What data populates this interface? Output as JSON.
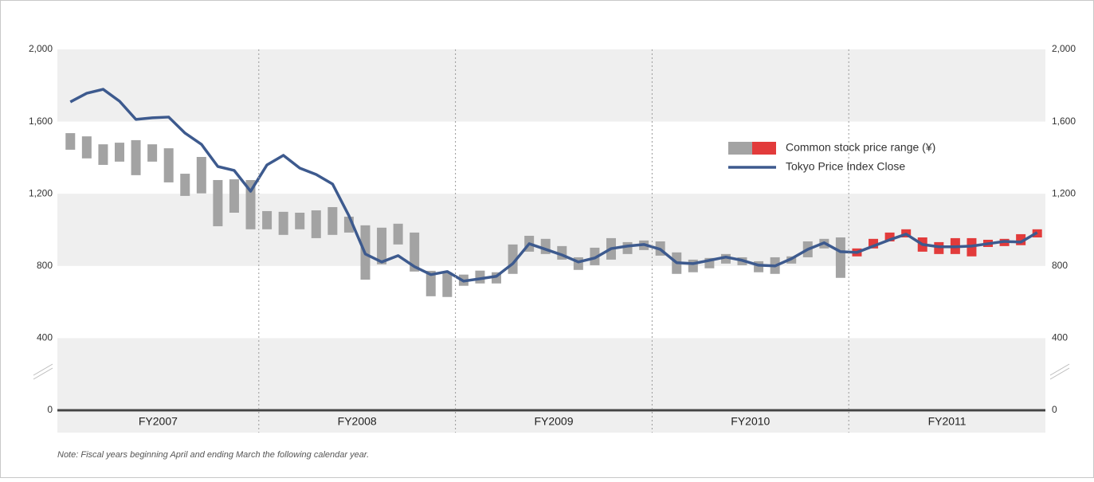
{
  "chart_data": {
    "type": "range-line",
    "note": "Note: Fiscal years beginning April and ending March the following calendar year.",
    "fiscal_years": [
      "FY2007",
      "FY2008",
      "FY2009",
      "FY2010",
      "FY2011"
    ],
    "categories": [
      null,
      null,
      null,
      null,
      null,
      null,
      null,
      null,
      null,
      null,
      null,
      null,
      null,
      null,
      null,
      null,
      null,
      null,
      null,
      null,
      null,
      null,
      null,
      null,
      null,
      null,
      null,
      null,
      null,
      null,
      null,
      null,
      null,
      null,
      null,
      null,
      null,
      null,
      null,
      null,
      null,
      null,
      null,
      null,
      null,
      null,
      null,
      null,
      null,
      null,
      null,
      null,
      null,
      null,
      null,
      null,
      null,
      null,
      null,
      null
    ],
    "ylim": [
      0,
      2000
    ],
    "yticks": [
      0,
      400,
      800,
      {
        "value": 1200,
        "label": "1,200"
      },
      {
        "value": 1600,
        "label": "1,600"
      },
      {
        "value": 2000,
        "label": "2,000"
      }
    ],
    "y2lim": [
      0,
      2000
    ],
    "y2ticks": [
      0,
      400,
      800,
      {
        "value": 1200,
        "label": "1,200"
      },
      {
        "value": 1600,
        "label": "1,600"
      },
      {
        "value": 2000,
        "label": "2,000"
      }
    ],
    "grid_bands": "#efefef",
    "series": [
      {
        "name": "Common stock price range (¥)",
        "type": "range",
        "year_colors": [
          "#a3a3a3",
          "#a3a3a3",
          "#a3a3a3",
          "#a3a3a3",
          "#e23b3b"
        ],
        "high": [
          1536,
          1518,
          1474,
          1483,
          1497,
          1474,
          1452,
          1311,
          1404,
          1276,
          1280,
          1276,
          1104,
          1100,
          1095,
          1108,
          1126,
          1073,
          1025,
          1012,
          1034,
          985,
          773,
          765,
          752,
          774,
          765,
          919,
          967,
          950,
          910,
          848,
          901,
          954,
          932,
          941,
          936,
          875,
          835,
          844,
          866,
          848,
          826,
          848,
          853,
          936,
          950,
          958,
          897,
          950,
          985,
          1003,
          958,
          932,
          954,
          954,
          945,
          950,
          976,
          1003
        ],
        "low": [
          1444,
          1396,
          1360,
          1378,
          1303,
          1378,
          1263,
          1188,
          1202,
          1020,
          1095,
          1003,
          1003,
          972,
          1003,
          954,
          972,
          985,
          724,
          809,
          919,
          769,
          632,
          628,
          690,
          703,
          703,
          756,
          879,
          866,
          835,
          778,
          804,
          835,
          866,
          888,
          857,
          756,
          765,
          787,
          813,
          804,
          765,
          756,
          813,
          848,
          897,
          734,
          853,
          897,
          936,
          958,
          879,
          866,
          866,
          853,
          905,
          910,
          915,
          958
        ]
      },
      {
        "name": "Tokyo Price Index Close",
        "type": "line",
        "color": "#3d5a8e",
        "values": [
          1709,
          1757,
          1779,
          1713,
          1612,
          1621,
          1625,
          1536,
          1474,
          1351,
          1329,
          1214,
          1360,
          1413,
          1342,
          1307,
          1254,
          1078,
          866,
          822,
          857,
          796,
          752,
          769,
          716,
          729,
          743,
          813,
          923,
          892,
          861,
          822,
          844,
          896,
          910,
          919,
          892,
          818,
          813,
          831,
          849,
          831,
          804,
          800,
          840,
          892,
          928,
          879,
          875,
          910,
          945,
          976,
          919,
          906,
          906,
          910,
          923,
          936,
          932,
          985
        ]
      }
    ],
    "legend": "upper-right"
  }
}
